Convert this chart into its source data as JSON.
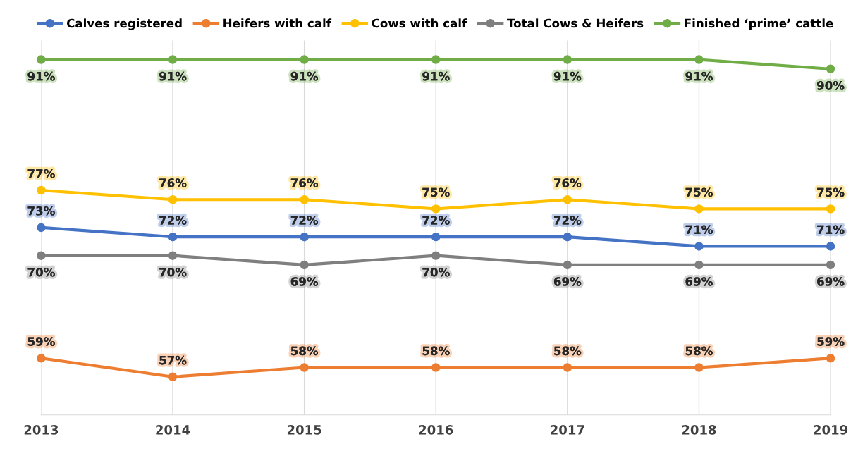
{
  "chart_data": {
    "type": "line",
    "categories": [
      "2013",
      "2014",
      "2015",
      "2016",
      "2017",
      "2018",
      "2019"
    ],
    "series": [
      {
        "name": "Calves registered",
        "color": "#4472c4",
        "values": [
          73,
          72,
          72,
          72,
          72,
          71,
          71
        ],
        "value_labels": [
          "73%",
          "72%",
          "72%",
          "72%",
          "72%",
          "71%",
          "71%"
        ]
      },
      {
        "name": "Heifers with calf",
        "color": "#ed7d31",
        "values": [
          59,
          57,
          58,
          58,
          58,
          58,
          59
        ],
        "value_labels": [
          "59%",
          "57%",
          "58%",
          "58%",
          "58%",
          "58%",
          "59%"
        ]
      },
      {
        "name": "Cows with calf",
        "color": "#ffc000",
        "values": [
          77,
          76,
          76,
          75,
          76,
          75,
          75
        ],
        "value_labels": [
          "77%",
          "76%",
          "76%",
          "75%",
          "76%",
          "75%",
          "75%"
        ]
      },
      {
        "name": "Total Cows & Heifers",
        "color": "#7f7f7f",
        "values": [
          70,
          70,
          69,
          70,
          69,
          69,
          69
        ],
        "value_labels": [
          "70%",
          "70%",
          "69%",
          "70%",
          "69%",
          "69%",
          "69%"
        ]
      },
      {
        "name": "Finished ‘prime’ cattle",
        "color": "#70ad47",
        "values": [
          91,
          91,
          91,
          91,
          91,
          91,
          90
        ],
        "value_labels": [
          "91%",
          "91%",
          "91%",
          "91%",
          "91%",
          "91%",
          "90%"
        ]
      }
    ],
    "grid": "x",
    "legend": "top",
    "marker": "circle",
    "line_style": "solid",
    "tick_labels": "x"
  }
}
